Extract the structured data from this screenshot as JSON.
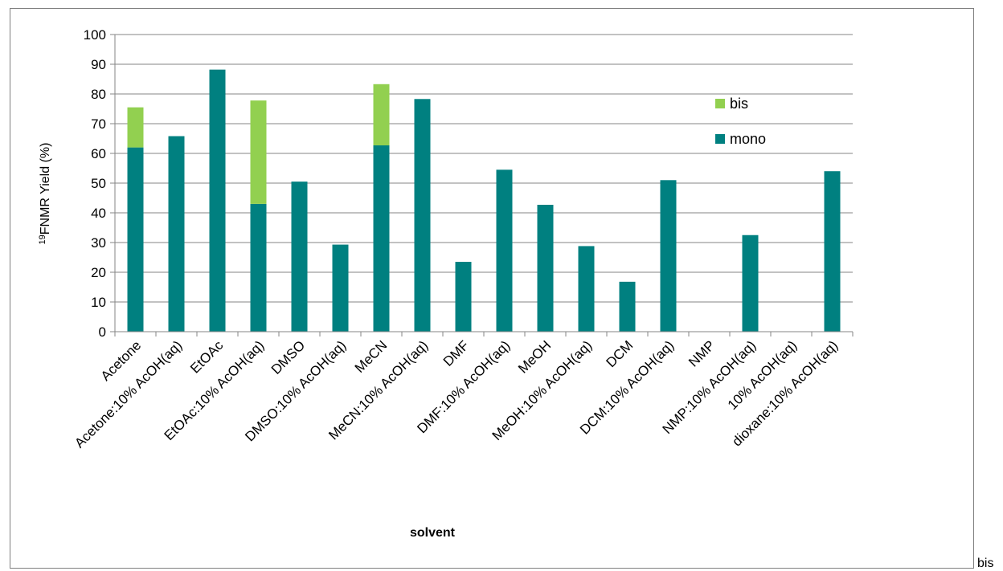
{
  "chart_data": {
    "type": "bar",
    "stacked": true,
    "title": "",
    "xlabel": "solvent",
    "ylabel_prefix": "19",
    "ylabel": "FNMR Yield (%)",
    "ylim": [
      0,
      100
    ],
    "ytick_step": 10,
    "grid": "horizontal",
    "legend_position": "right",
    "categories": [
      "Acetone",
      "Acetone:10% AcOH(aq)",
      "EtOAc",
      "EtOAc:10% AcOH(aq)",
      "DMSO",
      "DMSO:10% AcOH(aq)",
      "MeCN",
      "MeCN:10% AcOH(aq)",
      "DMF",
      "DMF:10% AcOH(aq)",
      "MeOH",
      "MeOH:10% AcOH(aq)",
      "DCM",
      "DCM:10% AcOH(aq)",
      "NMP",
      "NMP:10% AcOH(aq)",
      "10% AcOH(aq)",
      "dioxane:10% AcOH(aq)"
    ],
    "series": [
      {
        "name": "mono",
        "color": "#008080",
        "values": [
          62,
          65.8,
          88.2,
          43,
          50.5,
          29.3,
          62.7,
          78.3,
          23.5,
          54.5,
          42.7,
          28.8,
          16.8,
          51,
          0,
          32.5,
          0,
          54
        ]
      },
      {
        "name": "bis",
        "color": "#92D050",
        "values": [
          13.5,
          0,
          0,
          34.8,
          0,
          0,
          20.6,
          0,
          0,
          0,
          0,
          0,
          0,
          0,
          0,
          0,
          0,
          0
        ]
      }
    ],
    "legend": [
      "bis",
      "mono"
    ]
  },
  "stray_label": "bis"
}
